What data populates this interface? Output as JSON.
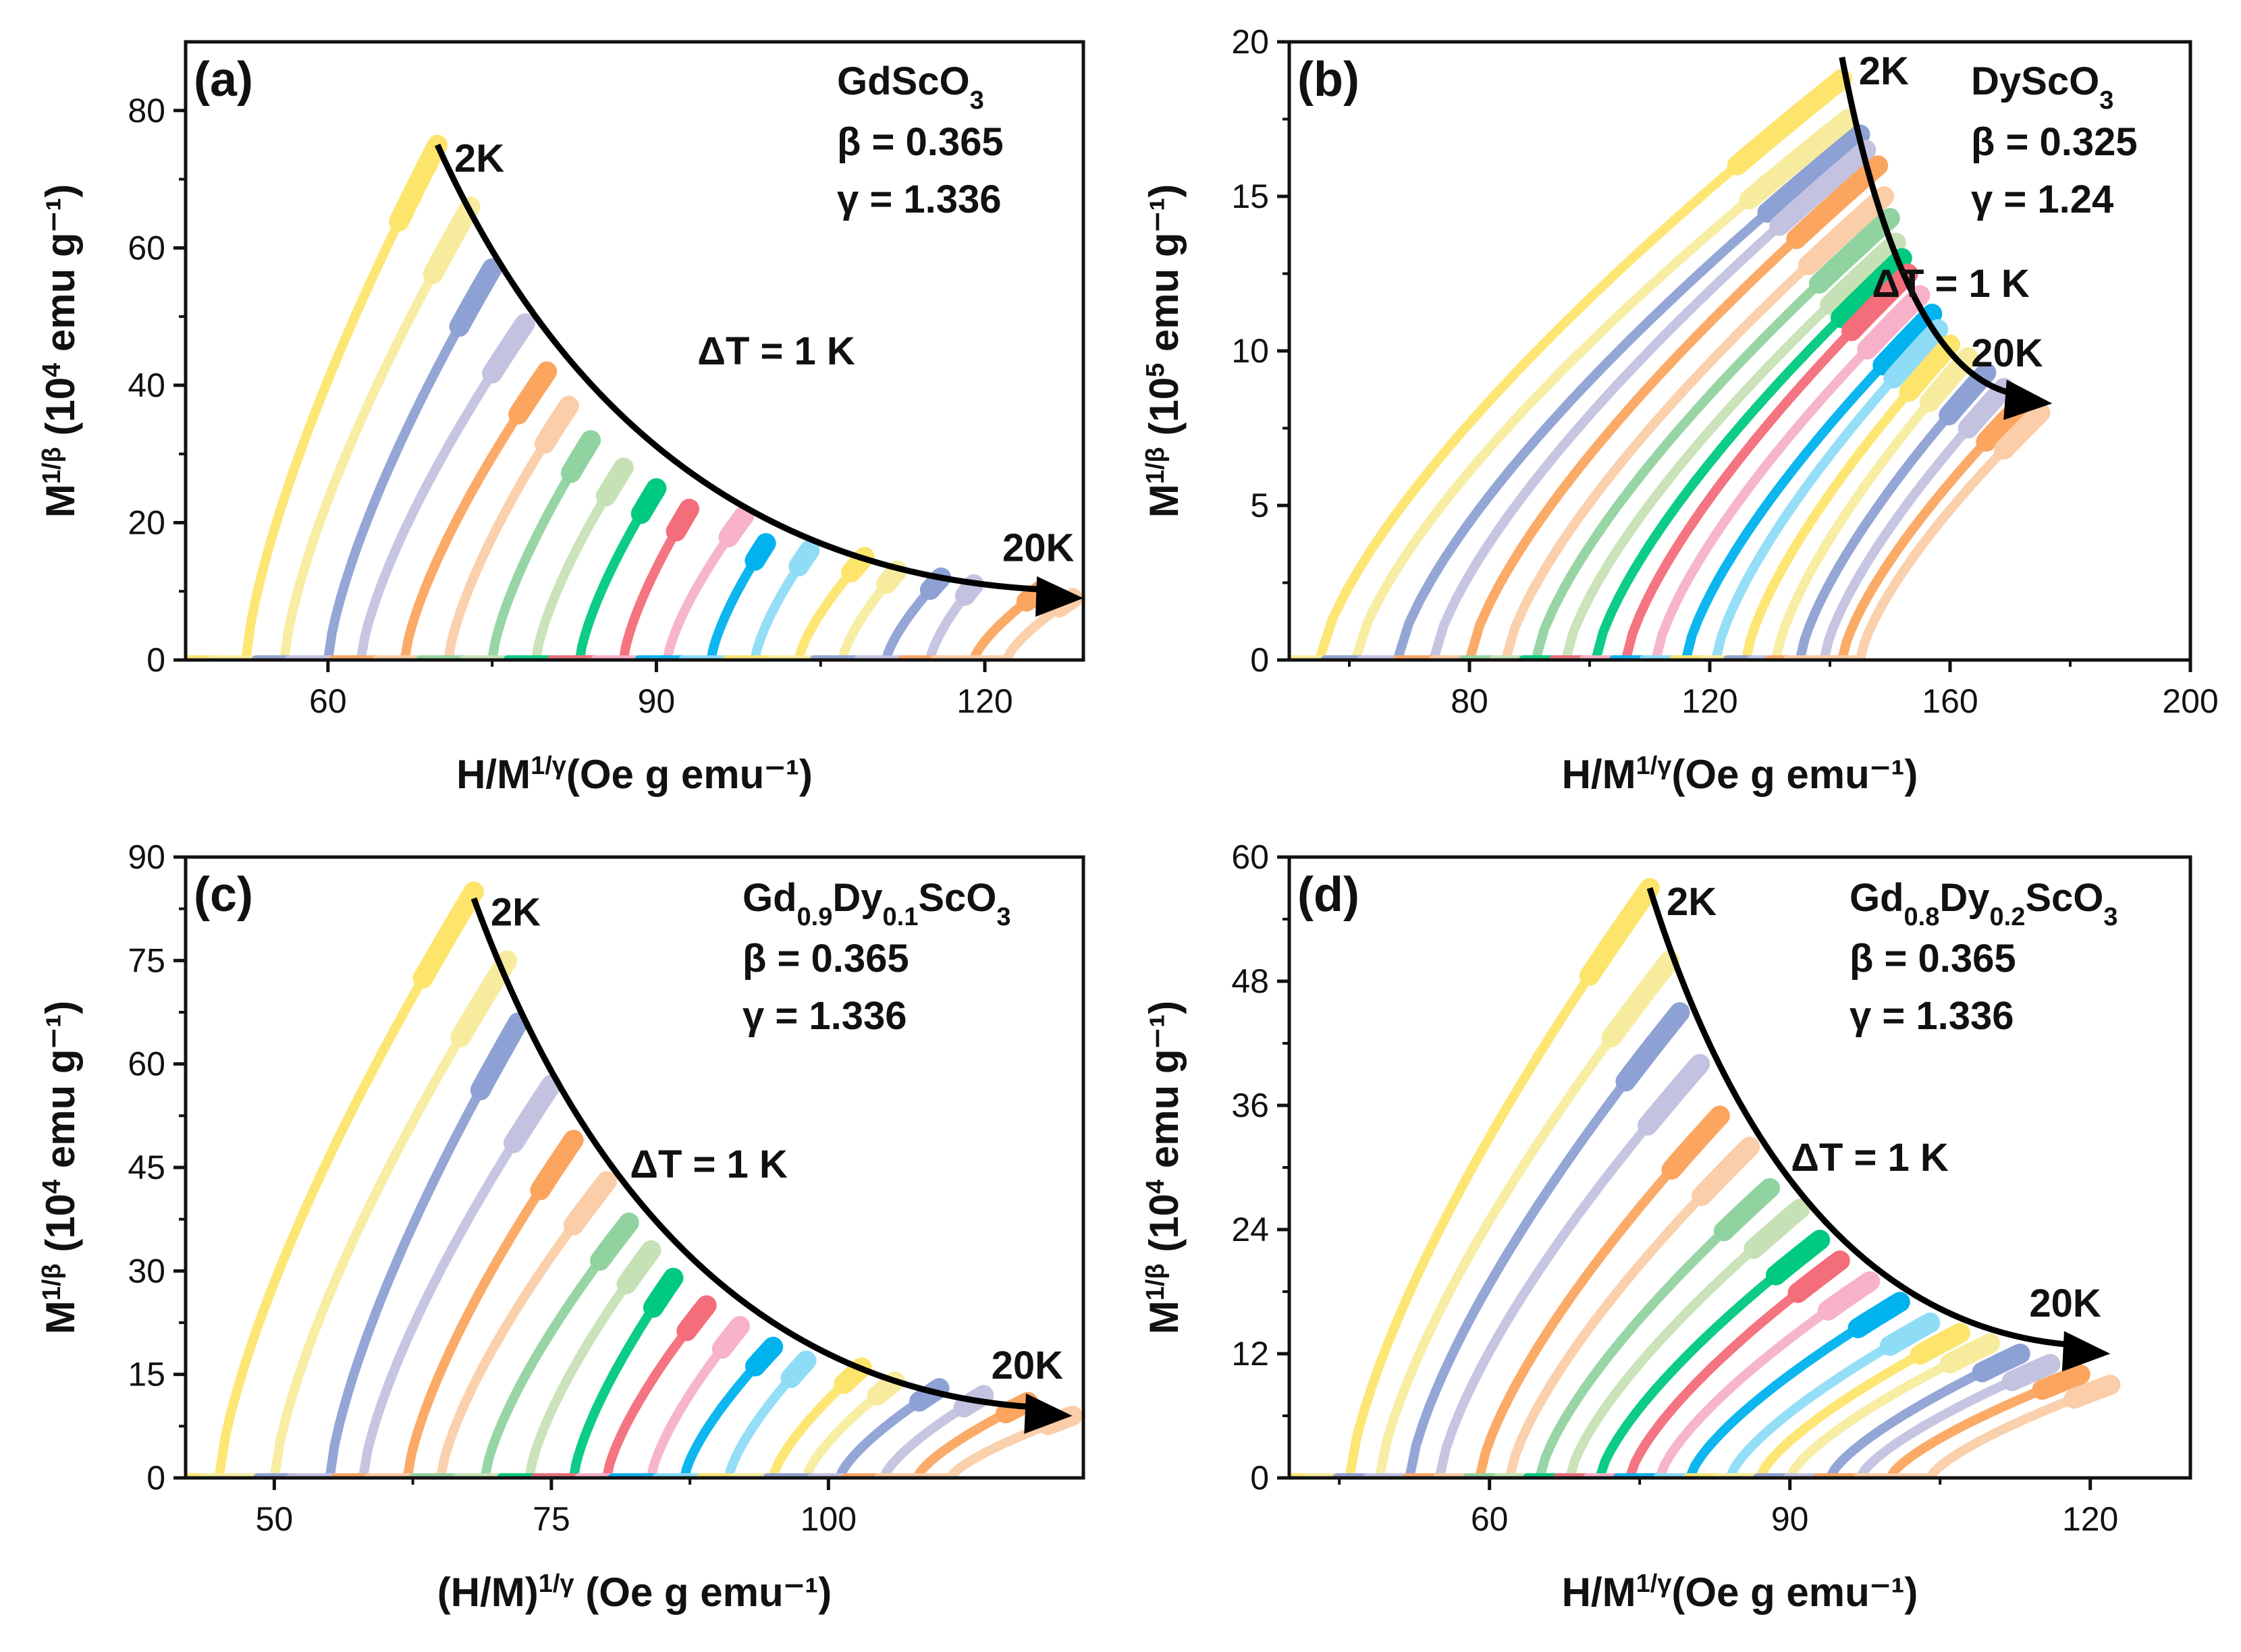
{
  "colors": {
    "series": [
      "#fde56c",
      "#f7ec9e",
      "#8ea1d4",
      "#c3c2e0",
      "#fba55f",
      "#fbcda8",
      "#91d3a0",
      "#c7e1b6",
      "#00c980",
      "#f46d7a",
      "#f7b1c9",
      "#00b2ee",
      "#8fdcf7"
    ],
    "arrow": "#000000",
    "axis": "#111111"
  },
  "chart_data": [
    {
      "id": "a",
      "type": "line",
      "panel_label": "(a)",
      "compound": {
        "base": "GdScO",
        "subs": [
          {
            "text": "3",
            "sub": true
          }
        ]
      },
      "beta": "β = 0.365",
      "gamma": "γ = 1.336",
      "delta_t": "ΔT = 1 K",
      "start_label": "2K",
      "end_label": "20K",
      "xlabel": {
        "main": "H/M",
        "sup": "1/γ",
        "tail": "(Oe g emu⁻¹)"
      },
      "ylabel": {
        "main": "M",
        "sup": "1/β",
        "mid": " (10",
        "sup2": "4",
        "tail": " emu g⁻¹)"
      },
      "xlim": [
        47,
        129
      ],
      "ylim": [
        0,
        90
      ],
      "xticks": [
        60,
        90,
        120
      ],
      "yticks": [
        0,
        20,
        40,
        60,
        80
      ],
      "series_count": 19,
      "x_intercepts": [
        52.5,
        56,
        60,
        63,
        67,
        71,
        75,
        79,
        83,
        87,
        91,
        95,
        99,
        103,
        107,
        111,
        115,
        119,
        122
      ],
      "y_tops": [
        75,
        66,
        57,
        49,
        42,
        37,
        32,
        28,
        25,
        22,
        21,
        17,
        16,
        15,
        13,
        12,
        11,
        10,
        9
      ],
      "x_tops": [
        70,
        73,
        75,
        78,
        80,
        82,
        84,
        87,
        90,
        93,
        98,
        100,
        104,
        109,
        112,
        116,
        119,
        125,
        128
      ],
      "arrow_path": [
        [
          70,
          75
        ],
        [
          129,
          9
        ]
      ]
    },
    {
      "id": "b",
      "type": "line",
      "panel_label": "(b)",
      "compound": {
        "base": "DyScO",
        "subs": [
          {
            "text": "3",
            "sub": true
          }
        ]
      },
      "beta": "β = 0.325",
      "gamma": "γ = 1.24",
      "delta_t": "ΔT = 1 K",
      "start_label": "2K",
      "end_label": "20K",
      "xlabel": {
        "main": "H/M",
        "sup": "1/γ",
        "tail": "(Oe g emu⁻¹)"
      },
      "ylabel": {
        "main": "M",
        "sup": "1/β",
        "mid": " (10",
        "sup2": "5",
        "tail": " emu g⁻¹)"
      },
      "xlim": [
        50,
        200
      ],
      "ylim": [
        0,
        20
      ],
      "xticks": [
        80,
        120,
        160,
        200
      ],
      "yticks": [
        0,
        5,
        10,
        15,
        20
      ],
      "series_count": 19,
      "x_intercepts": [
        55,
        61,
        68,
        74,
        80,
        86,
        91,
        96,
        101,
        106,
        111,
        116,
        121,
        126,
        131,
        135,
        139,
        142,
        145
      ],
      "y_tops": [
        18.8,
        17.5,
        17,
        16.5,
        16,
        15,
        14.3,
        13.5,
        13,
        12.5,
        11.8,
        11.2,
        10.7,
        10.2,
        9.8,
        9.3,
        8.8,
        8.3,
        8
      ],
      "x_tops": [
        142,
        143,
        145,
        146,
        148,
        149,
        150,
        151,
        152,
        153,
        155,
        157,
        158,
        160,
        163,
        166,
        169,
        172,
        175
      ],
      "arrow_path": [
        [
          142,
          19.5
        ],
        [
          177,
          8.3
        ]
      ]
    },
    {
      "id": "c",
      "type": "line",
      "panel_label": "(c)",
      "compound": {
        "base": "Gd",
        "subs": [
          {
            "text": "0.9",
            "sub": true
          },
          {
            "text": "Dy",
            "sub": false
          },
          {
            "text": "0.1",
            "sub": true
          },
          {
            "text": "ScO",
            "sub": false
          },
          {
            "text": "3",
            "sub": true
          }
        ]
      },
      "beta": "β = 0.365",
      "gamma": "γ = 1.336",
      "delta_t": "ΔT = 1 K",
      "start_label": "2K",
      "end_label": "20K",
      "xlabel": {
        "main": "(H/M)",
        "sup": "1/γ",
        "tail": " (Oe g emu⁻¹)"
      },
      "ylabel": {
        "main": "M",
        "sup": "1/β",
        "mid": " (10",
        "sup2": "4",
        "tail": " emu g⁻¹)"
      },
      "xlim": [
        42,
        123
      ],
      "ylim": [
        0,
        90
      ],
      "xticks": [
        50,
        75,
        100
      ],
      "yticks": [
        0,
        15,
        30,
        45,
        60,
        75,
        90
      ],
      "series_count": 19,
      "x_intercepts": [
        45,
        50,
        55,
        58,
        62,
        65,
        69,
        73,
        77,
        80,
        84,
        87,
        91,
        95,
        98,
        101,
        105,
        108,
        111
      ],
      "y_tops": [
        85,
        75,
        66,
        57,
        49,
        43,
        37,
        33,
        29,
        25,
        22,
        19,
        17,
        16,
        14,
        13,
        12,
        11,
        9
      ],
      "x_tops": [
        68,
        71,
        72,
        75,
        77,
        80,
        82,
        84,
        86,
        89,
        92,
        95,
        98,
        103,
        106,
        110,
        114,
        118,
        122
      ],
      "arrow_path": [
        [
          68,
          84
        ],
        [
          122,
          9
        ]
      ]
    },
    {
      "id": "d",
      "type": "line",
      "panel_label": "(d)",
      "compound": {
        "base": "Gd",
        "subs": [
          {
            "text": "0.8",
            "sub": true
          },
          {
            "text": "Dy",
            "sub": false
          },
          {
            "text": "0.2",
            "sub": true
          },
          {
            "text": "ScO",
            "sub": false
          },
          {
            "text": "3",
            "sub": true
          }
        ]
      },
      "beta": "β = 0.365",
      "gamma": "γ = 1.336",
      "delta_t": "ΔT = 1 K",
      "start_label": "2K",
      "end_label": "20K",
      "xlabel": {
        "main": "H/M",
        "sup": "1/γ",
        "tail": "(Oe g emu⁻¹)"
      },
      "ylabel": {
        "main": "M",
        "sup": "1/β",
        "mid": " (10",
        "sup2": "4",
        "tail": " emu g⁻¹)"
      },
      "xlim": [
        40,
        130
      ],
      "ylim": [
        0,
        60
      ],
      "xticks": [
        60,
        90,
        120
      ],
      "yticks": [
        0,
        12,
        24,
        36,
        48,
        60
      ],
      "series_count": 19,
      "x_intercepts": [
        46,
        49,
        52,
        55,
        59,
        62,
        65,
        68,
        71,
        74,
        77,
        80,
        84,
        87,
        90,
        94,
        97,
        100,
        104
      ],
      "y_tops": [
        57,
        50,
        45,
        40,
        35,
        32,
        28,
        26,
        23,
        21,
        19,
        17,
        15,
        14,
        13,
        12,
        11,
        10,
        9
      ],
      "x_tops": [
        76,
        78,
        79,
        81,
        83,
        86,
        88,
        91,
        93,
        95,
        98,
        101,
        104,
        107,
        110,
        113,
        116,
        119,
        122
      ],
      "arrow_path": [
        [
          76,
          57
        ],
        [
          122,
          12
        ]
      ]
    }
  ]
}
